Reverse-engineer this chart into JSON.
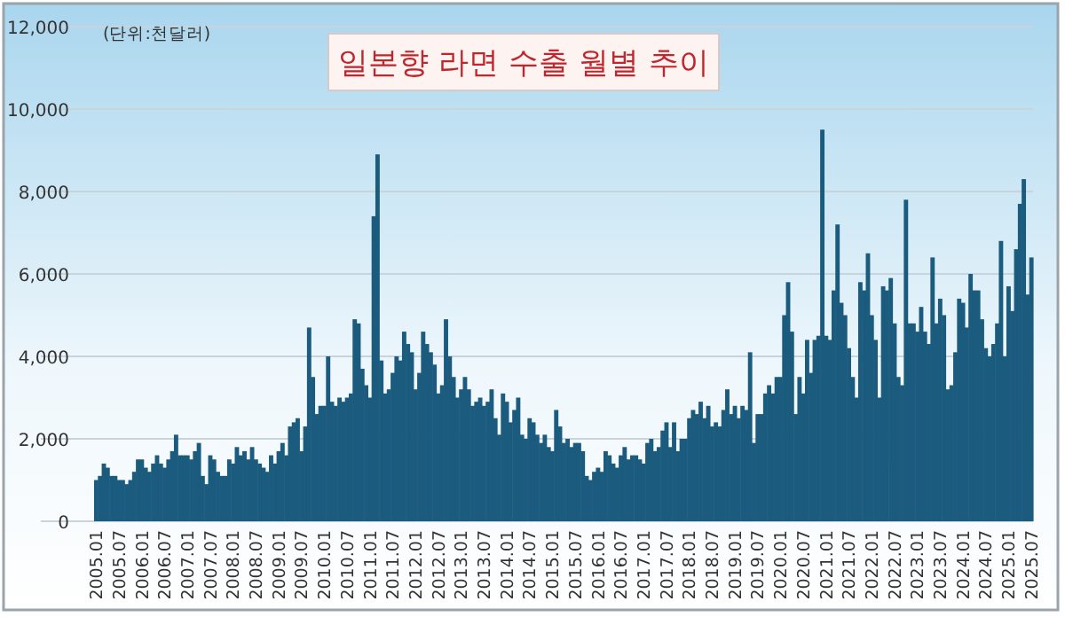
{
  "chart_data": {
    "type": "bar",
    "title": "일본향 라면 수출 월별 추이",
    "ylabel": "(단위:천달러)",
    "categories": [
      "2005.01",
      null,
      null,
      null,
      null,
      null,
      "2005.07",
      null,
      null,
      null,
      null,
      null,
      "2006.01",
      null,
      null,
      null,
      null,
      null,
      "2006.07",
      null,
      null,
      null,
      null,
      null,
      "2007.01",
      null,
      null,
      null,
      null,
      null,
      "2007.07",
      null,
      null,
      null,
      null,
      null,
      "2008.01",
      null,
      null,
      null,
      null,
      null,
      "2008.07",
      null,
      null,
      null,
      null,
      null,
      "2009.01",
      null,
      null,
      null,
      null,
      null,
      "2009.07",
      null,
      null,
      null,
      null,
      null,
      "2010.01",
      null,
      null,
      null,
      null,
      null,
      "2010.07",
      null,
      null,
      null,
      null,
      null,
      "2011.01",
      null,
      null,
      null,
      null,
      null,
      "2011.07",
      null,
      null,
      null,
      null,
      null,
      "2012.01",
      null,
      null,
      null,
      null,
      null,
      "2012.07",
      null,
      null,
      null,
      null,
      null,
      "2013.01",
      null,
      null,
      null,
      null,
      null,
      "2013.07",
      null,
      null,
      null,
      null,
      null,
      "2014.01",
      null,
      null,
      null,
      null,
      null,
      "2014.07",
      null,
      null,
      null,
      null,
      null,
      "2015.01",
      null,
      null,
      null,
      null,
      null,
      "2015.07",
      null,
      null,
      null,
      null,
      null,
      "2016.01",
      null,
      null,
      null,
      null,
      null,
      "2016.07",
      null,
      null,
      null,
      null,
      null,
      "2017.01",
      null,
      null,
      null,
      null,
      null,
      "2017.07",
      null,
      null,
      null,
      null,
      null,
      "2018.01",
      null,
      null,
      null,
      null,
      null,
      "2018.07",
      null,
      null,
      null,
      null,
      null,
      "2019.01",
      null,
      null,
      null,
      null,
      null,
      "2019.07",
      null,
      null,
      null,
      null,
      null,
      "2020.01",
      null,
      null,
      null,
      null,
      null,
      "2020.07",
      null,
      null,
      null,
      null,
      null,
      "2021.01",
      null,
      null,
      null,
      null,
      null,
      "2021.07",
      null,
      null,
      null,
      null,
      null,
      "2022.01",
      null,
      null,
      null,
      null,
      null,
      "2022.07",
      null,
      null,
      null,
      null,
      null,
      "2023.01",
      null,
      null,
      null,
      null,
      null,
      "2023.07",
      null,
      null,
      null,
      null,
      null,
      "2024.01",
      null,
      null,
      null,
      null,
      null,
      "2024.07",
      null,
      null,
      null,
      null,
      null,
      "2025.01",
      null,
      null,
      null,
      null,
      null,
      "2025.07"
    ],
    "values": [
      1000,
      1100,
      1400,
      1300,
      1100,
      1100,
      1000,
      1000,
      900,
      1000,
      1200,
      1500,
      1500,
      1300,
      1200,
      1400,
      1600,
      1400,
      1300,
      1500,
      1700,
      2100,
      1600,
      1600,
      1600,
      1500,
      1700,
      1900,
      1100,
      900,
      1600,
      1500,
      1200,
      1100,
      1100,
      1500,
      1400,
      1800,
      1600,
      1700,
      1500,
      1800,
      1500,
      1400,
      1300,
      1200,
      1600,
      1400,
      1700,
      1900,
      1600,
      2300,
      2400,
      2500,
      1700,
      2300,
      4700,
      3500,
      2600,
      2800,
      2800,
      4000,
      2900,
      2800,
      3000,
      2900,
      3000,
      3100,
      4900,
      4800,
      3700,
      3300,
      3000,
      7400,
      8900,
      3900,
      3100,
      3200,
      3600,
      4000,
      3900,
      4600,
      4300,
      4100,
      3200,
      3600,
      4600,
      4300,
      4100,
      3800,
      3100,
      3300,
      4900,
      4000,
      3500,
      3000,
      3200,
      3500,
      3200,
      2800,
      2900,
      3000,
      2800,
      2900,
      3200,
      2500,
      2100,
      3100,
      2900,
      2400,
      2700,
      3000,
      2100,
      2000,
      2500,
      2400,
      2100,
      1900,
      2100,
      1800,
      1700,
      2700,
      2300,
      1900,
      2000,
      1800,
      1900,
      1900,
      1700,
      1100,
      1000,
      1200,
      1300,
      1200,
      1700,
      1600,
      1400,
      1300,
      1600,
      1800,
      1500,
      1600,
      1600,
      1500,
      1400,
      1900,
      2000,
      1700,
      1800,
      2200,
      2400,
      1800,
      2400,
      1700,
      2000,
      2000,
      2500,
      2700,
      2600,
      2900,
      2500,
      2800,
      2300,
      2400,
      2300,
      2700,
      3200,
      2600,
      2800,
      2500,
      2800,
      2700,
      4100,
      1900,
      2600,
      2600,
      3100,
      3300,
      3100,
      3500,
      3500,
      5000,
      5800,
      4600,
      2600,
      3500,
      3100,
      4400,
      3600,
      4400,
      4500,
      9500,
      4500,
      4400,
      5600,
      7200,
      5300,
      5000,
      4200,
      3500,
      3000,
      5800,
      5600,
      6500,
      5000,
      4400,
      3000,
      5700,
      5600,
      5900,
      4800,
      3500,
      3300,
      7800,
      4800,
      4800,
      4600,
      5200,
      4600,
      4300,
      6400,
      4800,
      5400,
      5000,
      3200,
      3300,
      4100,
      5400,
      5300,
      4700,
      6000,
      5600,
      5600,
      4900,
      4200,
      4000,
      4300,
      4800,
      6800,
      4000,
      5700,
      5100,
      6600,
      7700,
      8300,
      5500,
      6400
    ],
    "color": "#1b5b7e",
    "ylim": [
      0,
      12000
    ],
    "yticks": [
      0,
      {
        "value": 2000,
        "label": "2,000"
      },
      {
        "value": 4000,
        "label": "4,000"
      },
      {
        "value": 6000,
        "label": "6,000"
      },
      {
        "value": 8000,
        "label": "8,000"
      },
      {
        "value": 10000,
        "label": "10,000"
      },
      {
        "value": 12000,
        "label": "12,000"
      }
    ],
    "grid": "y"
  }
}
